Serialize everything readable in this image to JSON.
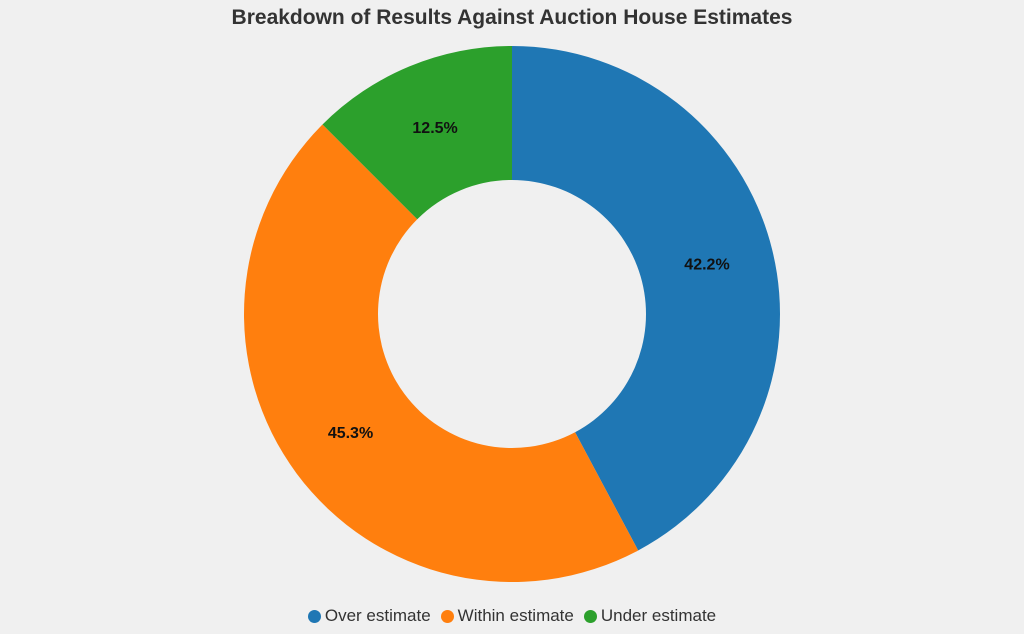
{
  "chart_data": {
    "type": "pie",
    "title": "Breakdown of Results Against Auction House Estimates",
    "donut": true,
    "legend_position": "bottom",
    "series": [
      {
        "name": "Over estimate",
        "value": 42.2,
        "label": "42.2%",
        "color": "#1f77b4"
      },
      {
        "name": "Within estimate",
        "value": 45.3,
        "label": "45.3%",
        "color": "#ff7f0e"
      },
      {
        "name": "Under estimate",
        "value": 12.5,
        "label": "12.5%",
        "color": "#2ca02c"
      }
    ]
  }
}
